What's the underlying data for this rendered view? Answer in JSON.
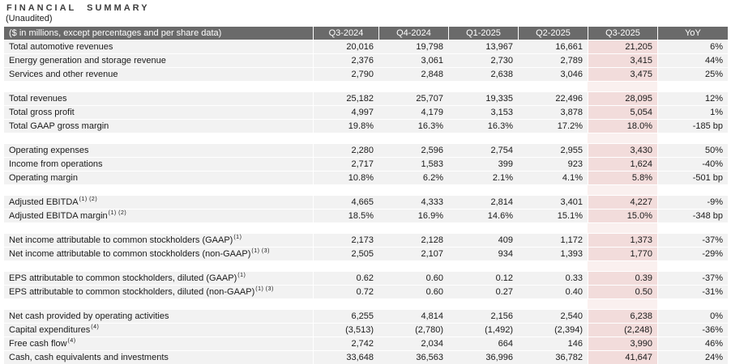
{
  "title": "FINANCIAL SUMMARY",
  "subtitle": "(Unaudited)",
  "colors": {
    "header_bg": "#6a6a6a",
    "row_bg": "#f2f2f2",
    "highlight": "#f2dcdb",
    "highlight_light": "#faf0ef"
  },
  "table": {
    "header": {
      "label": "($ in millions, except percentages and per share data)",
      "columns": [
        "Q3-2024",
        "Q4-2024",
        "Q1-2025",
        "Q2-2025",
        "Q3-2025",
        "YoY"
      ]
    },
    "highlighted_column": "Q3-2025",
    "groups": [
      {
        "rows": [
          {
            "label": "Total automotive revenues",
            "sup": "",
            "values": [
              "20,016",
              "19,798",
              "13,967",
              "16,661",
              "21,205",
              "6%"
            ]
          },
          {
            "label": "Energy generation and storage revenue",
            "sup": "",
            "values": [
              "2,376",
              "3,061",
              "2,730",
              "2,789",
              "3,415",
              "44%"
            ]
          },
          {
            "label": "Services and other revenue",
            "sup": "",
            "values": [
              "2,790",
              "2,848",
              "2,638",
              "3,046",
              "3,475",
              "25%"
            ]
          }
        ]
      },
      {
        "rows": [
          {
            "label": "Total revenues",
            "sup": "",
            "values": [
              "25,182",
              "25,707",
              "19,335",
              "22,496",
              "28,095",
              "12%"
            ]
          },
          {
            "label": "Total gross profit",
            "sup": "",
            "values": [
              "4,997",
              "4,179",
              "3,153",
              "3,878",
              "5,054",
              "1%"
            ]
          },
          {
            "label": "Total GAAP gross margin",
            "sup": "",
            "values": [
              "19.8%",
              "16.3%",
              "16.3%",
              "17.2%",
              "18.0%",
              "-185 bp"
            ]
          }
        ]
      },
      {
        "rows": [
          {
            "label": "Operating expenses",
            "sup": "",
            "values": [
              "2,280",
              "2,596",
              "2,754",
              "2,955",
              "3,430",
              "50%"
            ]
          },
          {
            "label": "Income from operations",
            "sup": "",
            "values": [
              "2,717",
              "1,583",
              "399",
              "923",
              "1,624",
              "-40%"
            ]
          },
          {
            "label": "Operating margin",
            "sup": "",
            "values": [
              "10.8%",
              "6.2%",
              "2.1%",
              "4.1%",
              "5.8%",
              "-501 bp"
            ]
          }
        ]
      },
      {
        "rows": [
          {
            "label": "Adjusted EBITDA",
            "sup": "(1) (2)",
            "values": [
              "4,665",
              "4,333",
              "2,814",
              "3,401",
              "4,227",
              "-9%"
            ]
          },
          {
            "label": "Adjusted EBITDA margin",
            "sup": "(1) (2)",
            "values": [
              "18.5%",
              "16.9%",
              "14.6%",
              "15.1%",
              "15.0%",
              "-348 bp"
            ]
          }
        ]
      },
      {
        "rows": [
          {
            "label": "Net income attributable to common stockholders (GAAP)",
            "sup": "(1)",
            "values": [
              "2,173",
              "2,128",
              "409",
              "1,172",
              "1,373",
              "-37%"
            ]
          },
          {
            "label": "Net income attributable to common stockholders (non-GAAP)",
            "sup": "(1) (3)",
            "values": [
              "2,505",
              "2,107",
              "934",
              "1,393",
              "1,770",
              "-29%"
            ]
          }
        ]
      },
      {
        "rows": [
          {
            "label": "EPS attributable to common stockholders, diluted (GAAP)",
            "sup": "(1)",
            "values": [
              "0.62",
              "0.60",
              "0.12",
              "0.33",
              "0.39",
              "-37%"
            ]
          },
          {
            "label": "EPS attributable to common stockholders, diluted (non-GAAP)",
            "sup": "(1) (3)",
            "values": [
              "0.72",
              "0.60",
              "0.27",
              "0.40",
              "0.50",
              "-31%"
            ]
          }
        ]
      },
      {
        "rows": [
          {
            "label": "Net cash provided by operating activities",
            "sup": "",
            "values": [
              "6,255",
              "4,814",
              "2,156",
              "2,540",
              "6,238",
              "0%"
            ]
          },
          {
            "label": "Capital expenditures",
            "sup": "(4)",
            "values": [
              "(3,513)",
              "(2,780)",
              "(1,492)",
              "(2,394)",
              "(2,248)",
              "-36%"
            ]
          },
          {
            "label": "Free cash flow",
            "sup": "(4)",
            "values": [
              "2,742",
              "2,034",
              "664",
              "146",
              "3,990",
              "46%"
            ]
          },
          {
            "label": "Cash, cash equivalents and investments",
            "sup": "",
            "values": [
              "33,648",
              "36,563",
              "36,996",
              "36,782",
              "41,647",
              "24%"
            ]
          }
        ]
      }
    ]
  }
}
